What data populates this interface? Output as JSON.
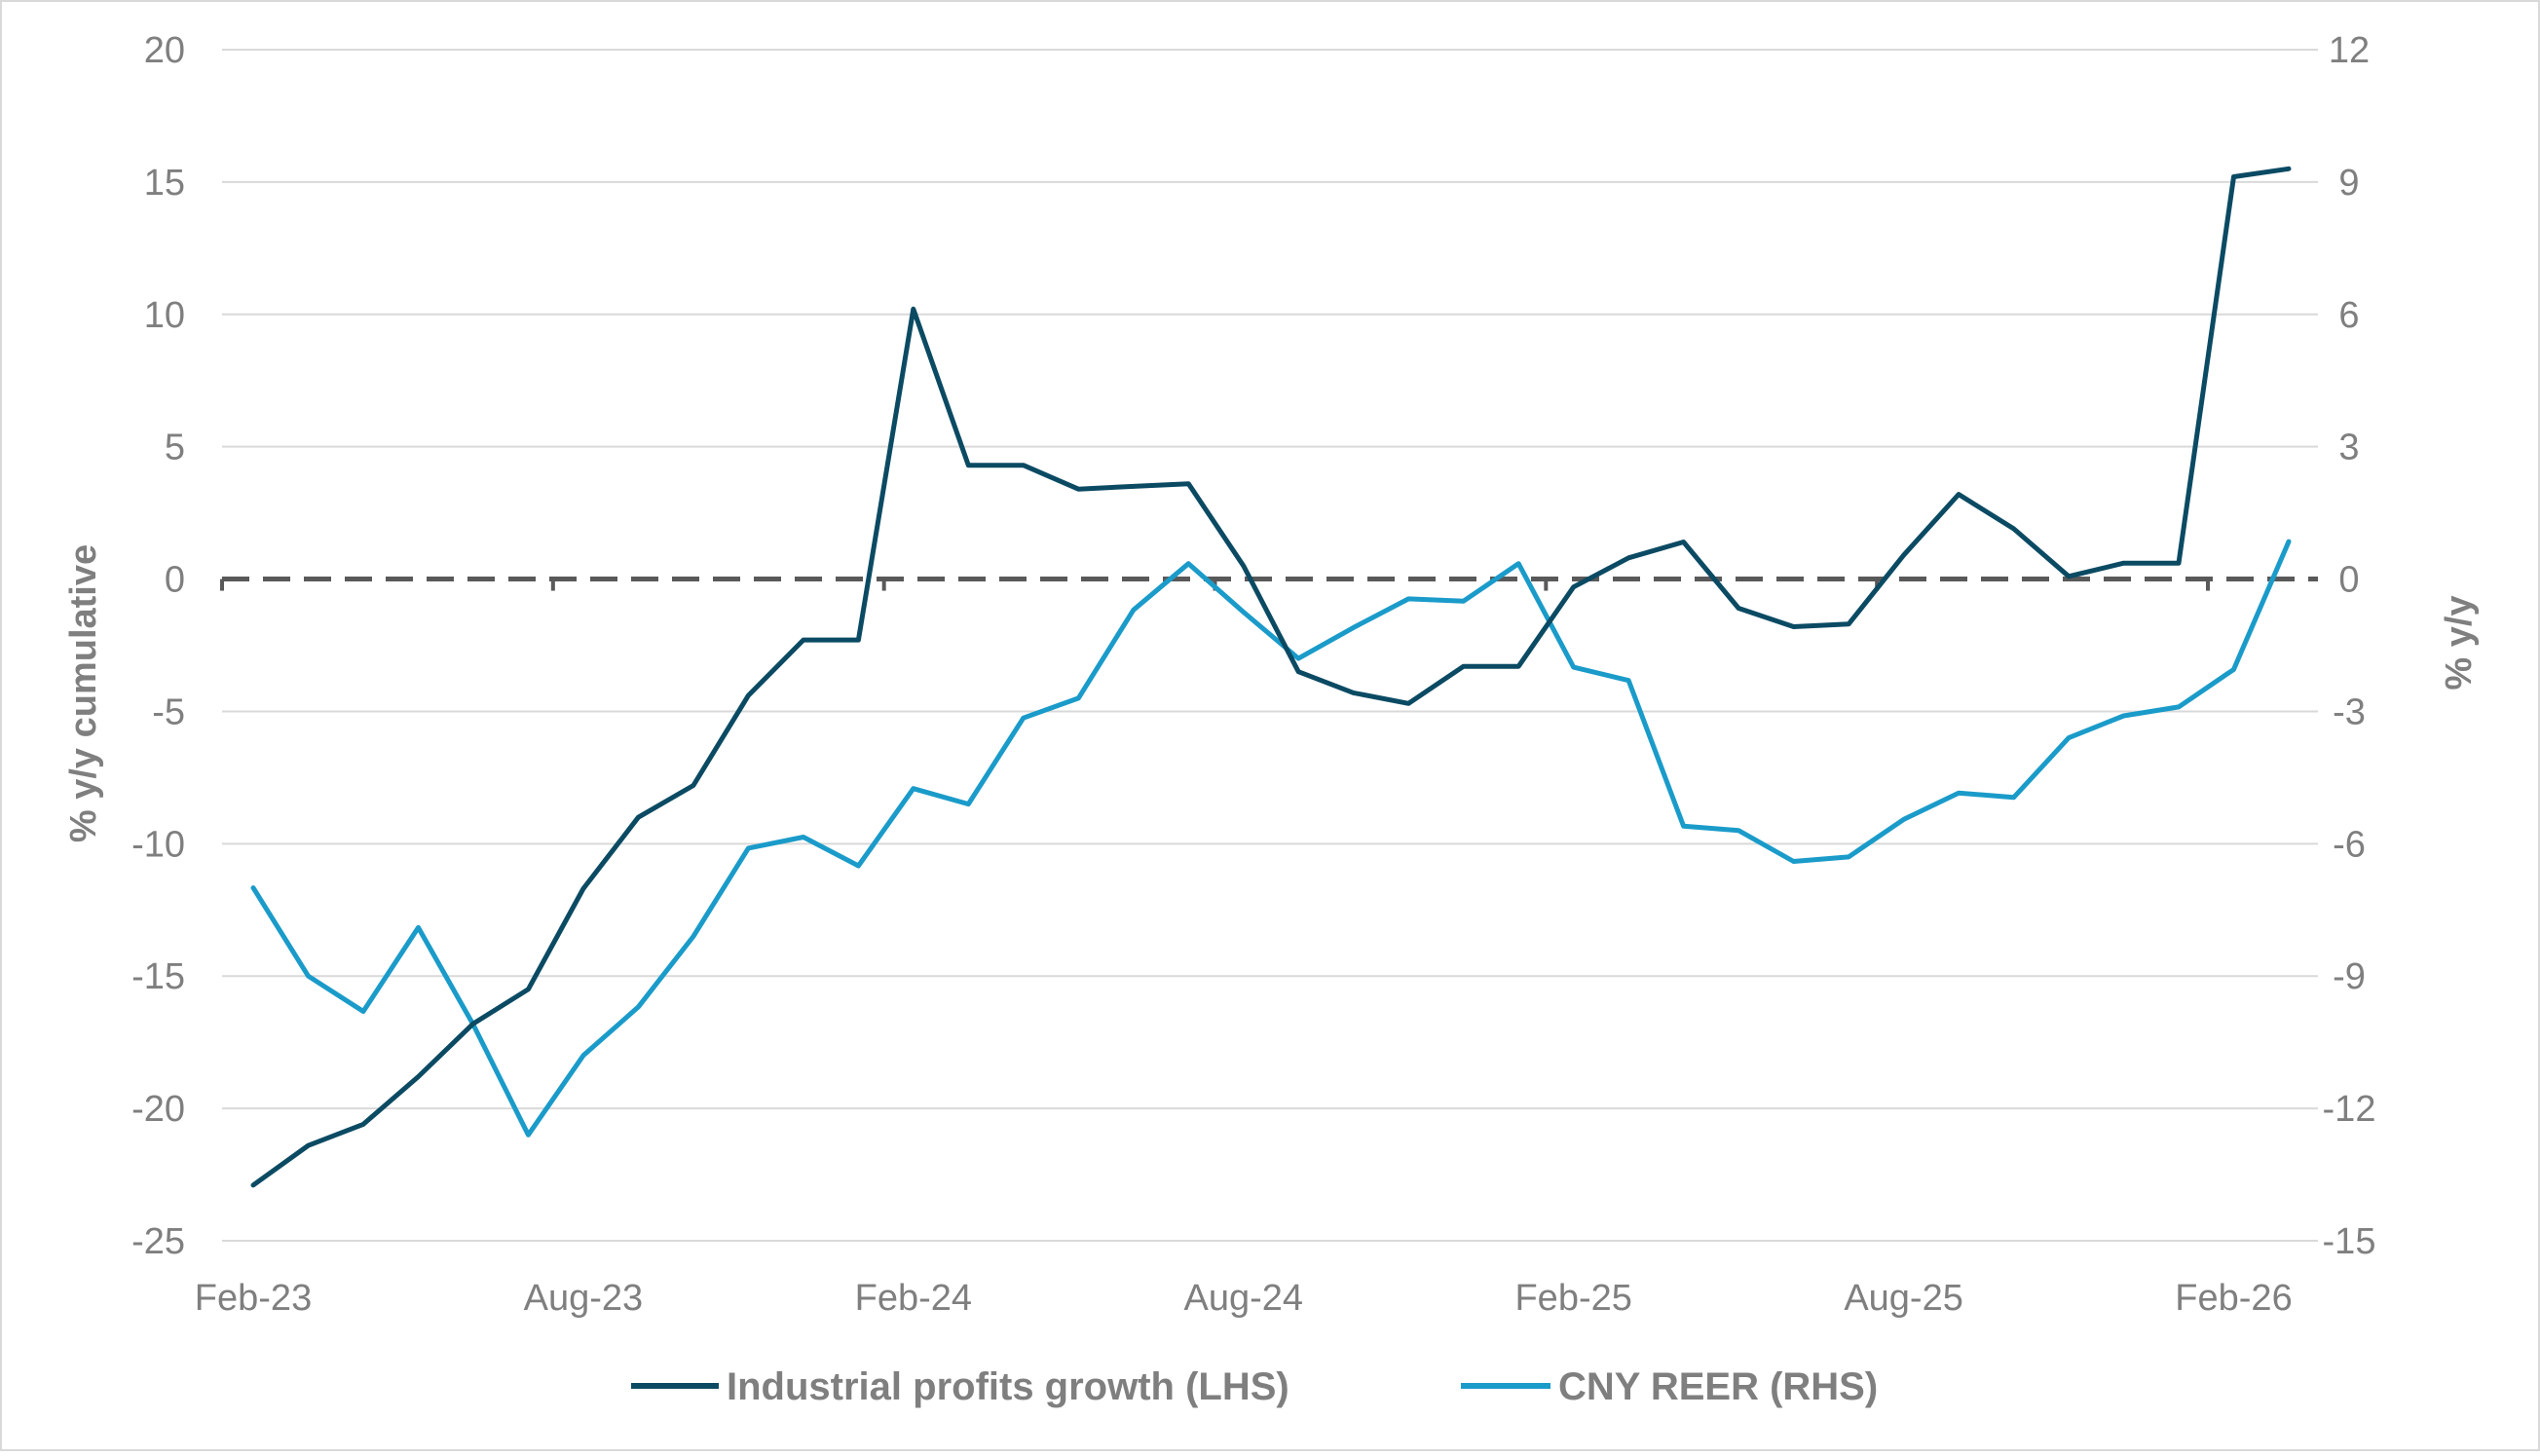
{
  "chart_data": {
    "type": "line",
    "x": [
      "Feb-23",
      "Mar-23",
      "Apr-23",
      "May-23",
      "Jun-23",
      "Jul-23",
      "Aug-23",
      "Sep-23",
      "Oct-23",
      "Nov-23",
      "Dec-23",
      "Jan-24",
      "Feb-24",
      "Mar-24",
      "Apr-24",
      "May-24",
      "Jun-24",
      "Jul-24",
      "Aug-24",
      "Sep-24",
      "Oct-24",
      "Nov-24",
      "Dec-24",
      "Jan-25",
      "Feb-25",
      "Mar-25",
      "Apr-25",
      "May-25",
      "Jun-25",
      "Jul-25",
      "Aug-25",
      "Sep-25",
      "Oct-25",
      "Nov-25",
      "Dec-25",
      "Jan-26",
      "Feb-26",
      "Mar-26"
    ],
    "x_tick_labels": [
      "Feb-23",
      "Aug-23",
      "Feb-24",
      "Aug-24",
      "Feb-25",
      "Aug-25",
      "Feb-26"
    ],
    "series": [
      {
        "name": "Industrial profits growth (LHS)",
        "axis": "left",
        "color": "#0b4a63",
        "values": [
          -22.9,
          -21.4,
          -20.6,
          -18.8,
          -16.8,
          -15.5,
          -11.7,
          -9.0,
          -7.8,
          -4.4,
          -2.3,
          -2.3,
          10.2,
          4.3,
          4.3,
          3.4,
          3.5,
          3.6,
          0.5,
          -3.5,
          -4.3,
          -4.7,
          -3.3,
          -3.3,
          -0.3,
          0.8,
          1.4,
          -1.1,
          -1.8,
          -1.7,
          0.9,
          3.2,
          1.9,
          0.1,
          0.6,
          0.6,
          15.2,
          15.5
        ]
      },
      {
        "name": "CNY REER (RHS)",
        "axis": "right",
        "color": "#1a9bc9",
        "values": [
          -7.0,
          -9.0,
          -9.8,
          -7.9,
          -10.1,
          -12.6,
          -10.8,
          -9.7,
          -8.1,
          -6.1,
          -5.85,
          -6.5,
          -4.75,
          -5.1,
          -3.15,
          -2.7,
          -0.7,
          0.35,
          -0.75,
          -1.8,
          -1.1,
          -0.45,
          -0.5,
          0.35,
          -2.0,
          -2.3,
          -5.6,
          -5.7,
          -6.4,
          -6.3,
          -5.45,
          -4.85,
          -4.95,
          -3.6,
          -3.1,
          -2.9,
          -2.05,
          0.85
        ]
      }
    ],
    "ylim_left": [
      -25,
      20
    ],
    "yticks_left": [
      "20",
      "15",
      "10",
      "5",
      "0",
      "-5",
      "-10",
      "-15",
      "-20",
      "-25"
    ],
    "ylim_right": [
      -15,
      12
    ],
    "yticks_right": [
      "12",
      "9",
      "6",
      "3",
      "0",
      "-3",
      "-6",
      "-9",
      "-12",
      "-15"
    ],
    "ylabel_left": "% y/y cumulative",
    "ylabel_right": "% y/y",
    "xlabel": "",
    "title": "",
    "grid": true,
    "zero_line": "dashed",
    "legend_position": "bottom"
  }
}
